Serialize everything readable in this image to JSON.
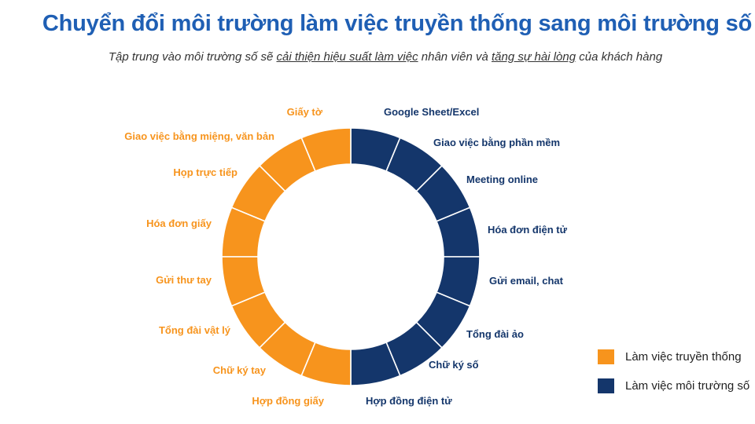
{
  "title": "Chuyển đổi môi trường làm việc truyền thống sang môi trường số",
  "subtitle": {
    "part1": "Tập trung vào môi trường số sẽ ",
    "link1": "cải thiện hiệu suất làm việc",
    "part2": "  nhân viên và ",
    "link2": "tăng sự hài lòng",
    "part3": " của khách hàng"
  },
  "colors": {
    "traditional": "#f7941d",
    "digital": "#14366b",
    "title": "#1f5fb4"
  },
  "segments": {
    "traditional": [
      "Giấy tờ",
      "Giao việc bằng miệng, văn bản",
      "Họp trực tiếp",
      "Hóa đơn giấy",
      "Gửi thư tay",
      "Tổng đài vật lý",
      "Chữ ký tay",
      "Hợp đồng giấy"
    ],
    "digital": [
      "Google Sheet/Excel",
      "Giao việc bằng phần mềm",
      "Meeting online",
      "Hóa đơn điện tử",
      "Gửi email, chat",
      "Tổng đài ảo",
      "Chữ ký số",
      "Hợp đồng điện tử"
    ]
  },
  "legend": {
    "traditional": "Làm việc truyền thống",
    "digital": "Làm việc môi trường số"
  }
}
